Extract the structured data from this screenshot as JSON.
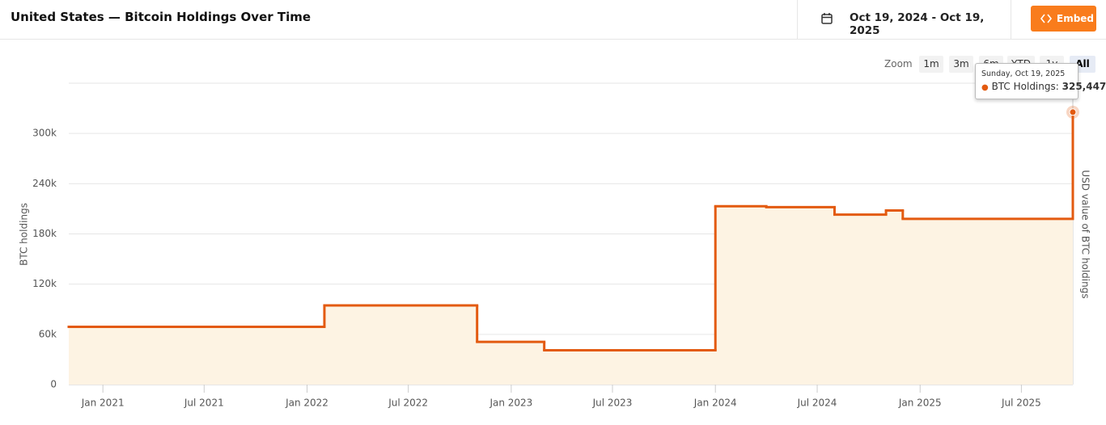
{
  "header": {
    "title": "United States — Bitcoin Holdings Over Time",
    "date_range": "Oct 19, 2024 - Oct 19, 2025",
    "embed": "Embed"
  },
  "zoom": {
    "label": "Zoom",
    "options": [
      "1m",
      "3m",
      "6m",
      "YTD",
      "1y",
      "All"
    ],
    "selected": "All"
  },
  "chart_data": {
    "type": "line",
    "step": true,
    "y_label": "BTC holdings",
    "y2_label": "USD value of BTC holdings",
    "x": [
      "2020-11",
      "2022-02",
      "2022-11",
      "2023-03",
      "2024-01",
      "2024-04",
      "2024-08",
      "2024-11",
      "2024-12",
      "2025-10"
    ],
    "series": [
      {
        "name": "BTC Holdings",
        "color": "#e35a10",
        "fill": "#fdf3e3",
        "values": [
          69000,
          94600,
          51000,
          41000,
          213000,
          212000,
          203000,
          208000,
          198000,
          325447
        ]
      }
    ],
    "xlim": [
      "2020-11",
      "2025-10"
    ],
    "xticks": [
      {
        "value": "2021-01",
        "label": "Jan 2021"
      },
      {
        "value": "2021-07",
        "label": "Jul 2021"
      },
      {
        "value": "2022-01",
        "label": "Jan 2022"
      },
      {
        "value": "2022-07",
        "label": "Jul 2022"
      },
      {
        "value": "2023-01",
        "label": "Jan 2023"
      },
      {
        "value": "2023-07",
        "label": "Jul 2023"
      },
      {
        "value": "2024-01",
        "label": "Jan 2024"
      },
      {
        "value": "2024-07",
        "label": "Jul 2024"
      },
      {
        "value": "2025-01",
        "label": "Jan 2025"
      },
      {
        "value": "2025-07",
        "label": "Jul 2025"
      }
    ],
    "ylim": [
      0,
      360000
    ],
    "yticks": [
      0,
      {
        "value": 60000,
        "label": "60k"
      },
      {
        "value": 120000,
        "label": "120k"
      },
      {
        "value": 180000,
        "label": "180k"
      },
      {
        "value": 240000,
        "label": "240k"
      },
      {
        "value": 300000,
        "label": "300k"
      }
    ],
    "grid": true,
    "tooltip": {
      "date": "Sunday, Oct 19, 2025",
      "label": "BTC Holdings:",
      "value": "325,447"
    }
  }
}
